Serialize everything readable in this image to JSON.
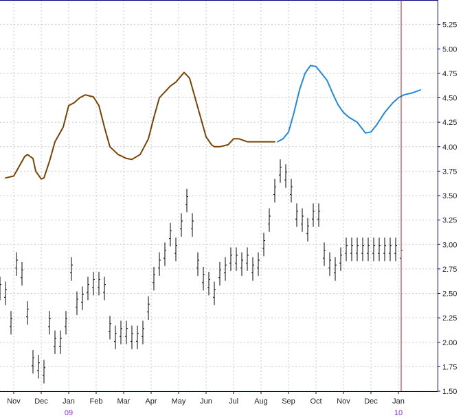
{
  "chart_data": {
    "type": "line",
    "grid": true,
    "ylim": [
      1.5,
      5.5
    ],
    "y_ticks": [
      "1.50",
      "1.75",
      "2.00",
      "2.25",
      "2.50",
      "2.75",
      "3.00",
      "3.25",
      "3.50",
      "3.75",
      "4.00",
      "4.25",
      "4.50",
      "4.75",
      "5.00",
      "5.25"
    ],
    "x_ticks": [
      {
        "label": "Nov",
        "month": 0
      },
      {
        "label": "Dec",
        "month": 1
      },
      {
        "label": "Jan",
        "month": 2
      },
      {
        "label": "Feb",
        "month": 3
      },
      {
        "label": "Mar",
        "month": 4
      },
      {
        "label": "Apr",
        "month": 5
      },
      {
        "label": "May",
        "month": 6
      },
      {
        "label": "Jun",
        "month": 7
      },
      {
        "label": "Jul",
        "month": 8
      },
      {
        "label": "Aug",
        "month": 9
      },
      {
        "label": "Sep",
        "month": 10
      },
      {
        "label": "Oct",
        "month": 11
      },
      {
        "label": "Nov",
        "month": 12
      },
      {
        "label": "Dec",
        "month": 13
      },
      {
        "label": "Jan",
        "month": 14
      }
    ],
    "year_labels": [
      {
        "label": "09",
        "month": 2
      },
      {
        "label": "10",
        "month": 14
      }
    ],
    "colors": {
      "grid": "#c8c8c8",
      "axis": "#000080",
      "marker_line": "#b22222",
      "past_line": "#7a4200",
      "forecast_line": "#1e88e5",
      "bars": "#000000",
      "year_label": "#8a2be2"
    },
    "marker_month": 14.1,
    "series": [
      {
        "style": "line",
        "color": "#7a4200",
        "x": [
          -0.3,
          0,
          0.2,
          0.4,
          0.5,
          0.7,
          0.8,
          1.0,
          1.1,
          1.3,
          1.5,
          1.8,
          2.0,
          2.2,
          2.4,
          2.6,
          2.9,
          3.1,
          3.3,
          3.5,
          3.8,
          4.1,
          4.3,
          4.6,
          4.9,
          5.1,
          5.3,
          5.7,
          5.9,
          6.2,
          6.4,
          6.8,
          7.0,
          7.2,
          7.3,
          7.5,
          7.8,
          8.0,
          8.2,
          8.5,
          8.7,
          9.0,
          9.2,
          9.5
        ],
        "values": [
          3.68,
          3.7,
          3.8,
          3.9,
          3.92,
          3.88,
          3.75,
          3.67,
          3.68,
          3.85,
          4.05,
          4.2,
          4.42,
          4.45,
          4.5,
          4.53,
          4.51,
          4.42,
          4.2,
          4.0,
          3.92,
          3.88,
          3.87,
          3.92,
          4.08,
          4.3,
          4.5,
          4.62,
          4.66,
          4.76,
          4.7,
          4.3,
          4.1,
          4.02,
          4.0,
          4.0,
          4.02,
          4.08,
          4.08,
          4.05,
          4.05,
          4.05,
          4.05,
          4.05
        ]
      },
      {
        "style": "line",
        "color": "#1e88e5",
        "x": [
          9.6,
          9.8,
          10.0,
          10.2,
          10.4,
          10.6,
          10.8,
          11.0,
          11.2,
          11.4,
          11.6,
          11.8,
          12.0,
          12.2,
          12.5,
          12.8,
          13.0,
          13.2,
          13.5,
          13.8,
          14.0,
          14.2,
          14.5,
          14.8
        ],
        "values": [
          4.05,
          4.08,
          4.15,
          4.35,
          4.58,
          4.75,
          4.83,
          4.82,
          4.75,
          4.68,
          4.55,
          4.43,
          4.35,
          4.3,
          4.25,
          4.14,
          4.15,
          4.22,
          4.35,
          4.45,
          4.5,
          4.53,
          4.55,
          4.58
        ]
      },
      {
        "style": "bars",
        "color": "#000000",
        "x": [
          -0.5,
          -0.3,
          -0.1,
          0.1,
          0.3,
          0.5,
          0.7,
          0.9,
          1.1,
          1.3,
          1.5,
          1.7,
          1.9,
          2.1,
          2.3,
          2.5,
          2.7,
          2.9,
          3.1,
          3.3,
          3.5,
          3.7,
          3.9,
          4.1,
          4.3,
          4.5,
          4.7,
          4.9,
          5.1,
          5.3,
          5.5,
          5.7,
          5.9,
          6.1,
          6.3,
          6.5,
          6.7,
          6.9,
          7.1,
          7.3,
          7.5,
          7.7,
          7.9,
          8.1,
          8.3,
          8.5,
          8.7,
          8.9,
          9.1,
          9.3,
          9.5,
          9.7,
          9.9,
          10.1,
          10.3,
          10.5,
          10.7,
          10.9,
          11.1,
          11.3,
          11.5,
          11.7,
          11.9,
          12.1,
          12.3,
          12.5,
          12.7,
          12.9,
          13.1,
          13.3,
          13.5,
          13.7,
          13.9,
          14.1
        ],
        "values": [
          2.55,
          2.5,
          2.2,
          2.8,
          2.7,
          2.3,
          1.8,
          1.75,
          1.7,
          2.2,
          2.0,
          2.0,
          2.2,
          2.75,
          2.4,
          2.45,
          2.55,
          2.6,
          2.6,
          2.55,
          2.15,
          2.05,
          2.1,
          2.1,
          2.05,
          2.05,
          2.1,
          2.35,
          2.65,
          2.8,
          2.9,
          3.1,
          2.95,
          3.2,
          3.45,
          3.2,
          2.8,
          2.65,
          2.6,
          2.5,
          2.7,
          2.75,
          2.85,
          2.85,
          2.8,
          2.85,
          2.75,
          2.8,
          3.0,
          3.25,
          3.55,
          3.75,
          3.7,
          3.55,
          3.3,
          3.25,
          3.15,
          3.3,
          3.3,
          2.9,
          2.8,
          2.75,
          2.85,
          2.95,
          2.95,
          2.95,
          2.95,
          2.95,
          2.95,
          2.95,
          2.95,
          2.95,
          2.95,
          2.9
        ]
      }
    ]
  }
}
